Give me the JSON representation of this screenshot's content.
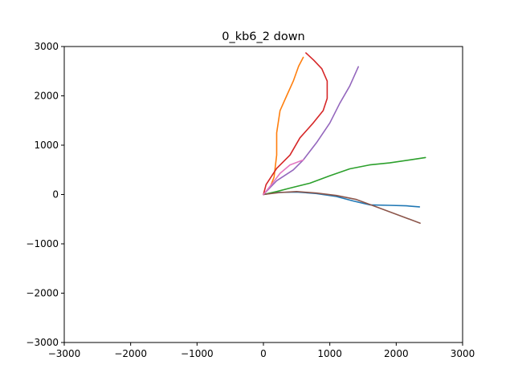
{
  "chart_data": {
    "type": "line",
    "title": "0_kb6_2 down",
    "xlabel": "",
    "ylabel": "",
    "xlim": [
      -3000,
      3000
    ],
    "ylim": [
      -3000,
      3000
    ],
    "xticks": [
      -3000,
      -2000,
      -1000,
      0,
      1000,
      2000,
      3000
    ],
    "yticks": [
      -3000,
      -2000,
      -1000,
      0,
      1000,
      2000,
      3000
    ],
    "grid": false,
    "series": [
      {
        "color": "#1f77b4",
        "points": [
          [
            0,
            0
          ],
          [
            200,
            40
          ],
          [
            500,
            50
          ],
          [
            800,
            20
          ],
          [
            1100,
            -40
          ],
          [
            1350,
            -130
          ],
          [
            1600,
            -210
          ],
          [
            1900,
            -220
          ],
          [
            2150,
            -230
          ],
          [
            2350,
            -250
          ]
        ]
      },
      {
        "color": "#ff7f0e",
        "points": [
          [
            0,
            0
          ],
          [
            100,
            150
          ],
          [
            160,
            350
          ],
          [
            200,
            800
          ],
          [
            200,
            1250
          ],
          [
            250,
            1700
          ],
          [
            350,
            2000
          ],
          [
            450,
            2300
          ],
          [
            530,
            2600
          ],
          [
            600,
            2780
          ]
        ]
      },
      {
        "color": "#2ca02c",
        "points": [
          [
            0,
            0
          ],
          [
            200,
            60
          ],
          [
            400,
            130
          ],
          [
            700,
            230
          ],
          [
            1000,
            380
          ],
          [
            1300,
            520
          ],
          [
            1600,
            600
          ],
          [
            1900,
            640
          ],
          [
            2200,
            700
          ],
          [
            2440,
            750
          ]
        ]
      },
      {
        "color": "#d62728",
        "points": [
          [
            0,
            0
          ],
          [
            40,
            200
          ],
          [
            200,
            530
          ],
          [
            400,
            800
          ],
          [
            550,
            1150
          ],
          [
            750,
            1450
          ],
          [
            900,
            1700
          ],
          [
            960,
            1950
          ],
          [
            960,
            2300
          ],
          [
            880,
            2550
          ],
          [
            760,
            2720
          ],
          [
            640,
            2870
          ]
        ]
      },
      {
        "color": "#9467bd",
        "points": [
          [
            0,
            0
          ],
          [
            200,
            280
          ],
          [
            450,
            500
          ],
          [
            600,
            700
          ],
          [
            800,
            1050
          ],
          [
            1000,
            1450
          ],
          [
            1150,
            1850
          ],
          [
            1300,
            2200
          ],
          [
            1430,
            2590
          ]
        ]
      },
      {
        "color": "#8c564b",
        "points": [
          [
            0,
            0
          ],
          [
            250,
            40
          ],
          [
            500,
            60
          ],
          [
            800,
            30
          ],
          [
            1100,
            -20
          ],
          [
            1400,
            -100
          ],
          [
            1700,
            -250
          ],
          [
            2000,
            -400
          ],
          [
            2200,
            -500
          ],
          [
            2360,
            -580
          ]
        ]
      },
      {
        "color": "#e377c2",
        "points": [
          [
            0,
            0
          ],
          [
            120,
            200
          ],
          [
            250,
            430
          ],
          [
            400,
            600
          ],
          [
            600,
            700
          ]
        ]
      }
    ]
  }
}
